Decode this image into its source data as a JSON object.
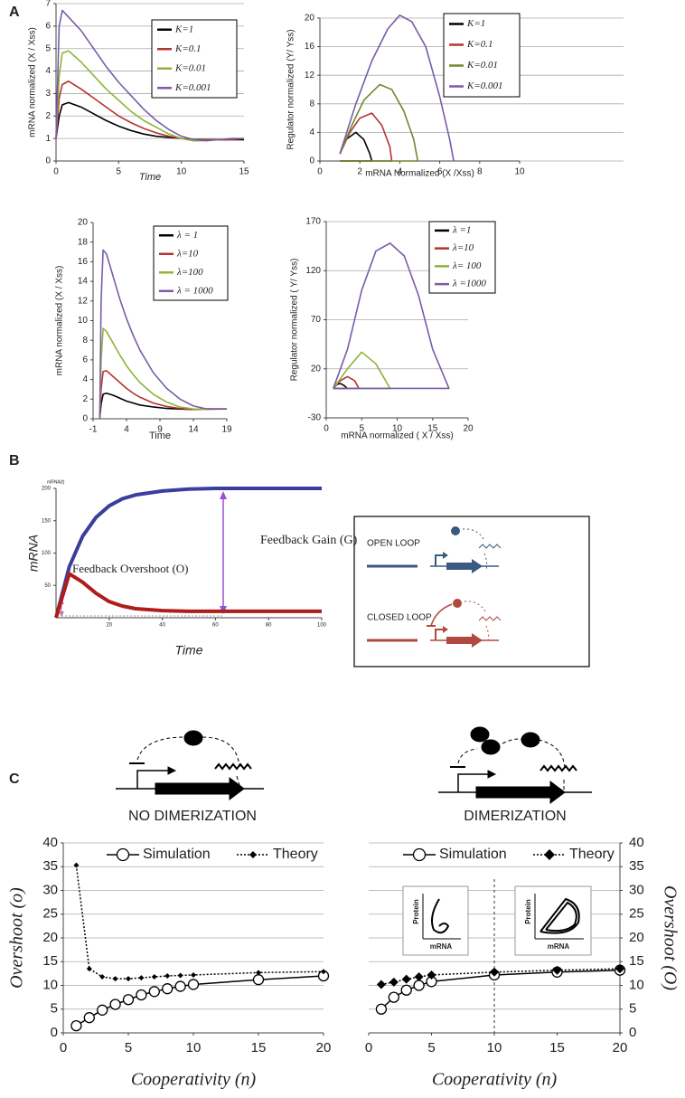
{
  "chart_data": [
    {
      "type": "line",
      "panel": "A",
      "xlabel": "Time",
      "ylabel": "mRNA normalized (X / Xss)",
      "xlim": [
        0,
        15
      ],
      "xticks": [
        0,
        5,
        10,
        15
      ],
      "ylim": [
        0,
        7
      ],
      "yticks": [
        0,
        1,
        2,
        3,
        4,
        5,
        6,
        7
      ],
      "grid": true,
      "x": [
        0,
        0.25,
        0.5,
        1,
        2,
        3,
        4,
        5,
        6,
        7,
        8,
        9,
        10,
        11,
        12,
        13,
        14,
        15
      ],
      "series": [
        {
          "name": "K=1",
          "color": "#000000",
          "values": [
            1,
            2.0,
            2.5,
            2.6,
            2.4,
            2.1,
            1.8,
            1.55,
            1.35,
            1.2,
            1.1,
            1.05,
            1.0,
            0.95,
            0.95,
            0.95,
            0.95,
            0.95
          ]
        },
        {
          "name": "K=0.1",
          "color": "#b5332e",
          "values": [
            1,
            2.8,
            3.4,
            3.55,
            3.2,
            2.8,
            2.4,
            2.0,
            1.7,
            1.45,
            1.25,
            1.1,
            1.0,
            0.9,
            0.95,
            0.95,
            0.95,
            1.0
          ]
        },
        {
          "name": "K=0.01",
          "color": "#8fb339",
          "values": [
            1,
            3.8,
            4.8,
            4.9,
            4.4,
            3.8,
            3.2,
            2.7,
            2.2,
            1.8,
            1.5,
            1.2,
            1.0,
            0.9,
            0.9,
            0.95,
            1.0,
            1.0
          ]
        },
        {
          "name": "K=0.001",
          "color": "#7a5ca8",
          "values": [
            1,
            6.0,
            6.7,
            6.4,
            5.8,
            5.0,
            4.2,
            3.5,
            2.9,
            2.3,
            1.8,
            1.4,
            1.1,
            0.95,
            0.9,
            0.95,
            1.0,
            1.0
          ]
        }
      ]
    },
    {
      "type": "line",
      "xlabel": "mRNA Normalized (X /Xss)",
      "ylabel": "Regulator  normalized (Y/ Yss)",
      "xlim": [
        0,
        10
      ],
      "xticks": [
        0,
        2,
        4,
        6,
        8,
        10
      ],
      "ylim": [
        0,
        20
      ],
      "yticks": [
        0,
        4,
        8,
        12,
        16,
        20
      ],
      "grid": true,
      "series": [
        {
          "name": "K=1",
          "color": "#000000",
          "x": [
            1,
            1.3,
            1.8,
            2.2,
            2.5,
            2.6,
            2.0,
            1.2,
            1.0
          ],
          "values": [
            1,
            3,
            4,
            3,
            1,
            0,
            0,
            0,
            0
          ]
        },
        {
          "name": "K=0.1",
          "color": "#b5332e",
          "x": [
            1,
            1.5,
            2,
            2.6,
            3.1,
            3.5,
            3.6,
            2.5,
            1.0
          ],
          "values": [
            1,
            4,
            6,
            6.7,
            5,
            2,
            0,
            0,
            0
          ]
        },
        {
          "name": "K=0.01",
          "color": "#6f8a2e",
          "x": [
            1,
            1.6,
            2.2,
            3,
            3.6,
            4.2,
            4.7,
            4.9,
            3,
            1.0
          ],
          "values": [
            1,
            5,
            8.5,
            10.7,
            10,
            7,
            3,
            0,
            0,
            0
          ]
        },
        {
          "name": "K=0.001",
          "color": "#7a5ca8",
          "x": [
            1,
            1.8,
            2.6,
            3.4,
            4,
            4.6,
            5.3,
            6,
            6.5,
            6.7
          ],
          "values": [
            1,
            8,
            14,
            18.5,
            20.4,
            19.5,
            16,
            9,
            3,
            0
          ]
        }
      ]
    },
    {
      "type": "line",
      "xlabel": "Time",
      "ylabel": "mRNA normalized (X / Xss)",
      "xlim": [
        -1,
        19
      ],
      "xticks": [
        -1,
        4,
        9,
        14,
        19
      ],
      "ylim": [
        0,
        20
      ],
      "yticks": [
        0,
        2,
        4,
        6,
        8,
        10,
        12,
        14,
        16,
        18,
        20
      ],
      "grid": false,
      "x": [
        0,
        0.2,
        0.5,
        1,
        2,
        3,
        4,
        5,
        6,
        8,
        10,
        12,
        14,
        16,
        19
      ],
      "series": [
        {
          "name": "λ = 1",
          "color": "#000000",
          "values": [
            0,
            1.5,
            2.5,
            2.6,
            2.4,
            2.1,
            1.8,
            1.6,
            1.4,
            1.2,
            1.05,
            1,
            0.95,
            1,
            1
          ]
        },
        {
          "name": "λ=10",
          "color": "#b5332e",
          "values": [
            0,
            3,
            4.8,
            4.9,
            4.3,
            3.7,
            3.1,
            2.6,
            2.2,
            1.6,
            1.25,
            1.05,
            0.95,
            1,
            1
          ]
        },
        {
          "name": "λ=100",
          "color": "#8fb339",
          "values": [
            0,
            6,
            9.2,
            8.9,
            7.7,
            6.5,
            5.4,
            4.5,
            3.7,
            2.5,
            1.7,
            1.2,
            1.0,
            0.95,
            1
          ]
        },
        {
          "name": "λ = 1000",
          "color": "#7a5ca8",
          "values": [
            0,
            12,
            17.2,
            16.8,
            14.5,
            12.2,
            10.2,
            8.5,
            7.0,
            4.7,
            3.1,
            2.0,
            1.3,
            1.0,
            1
          ]
        }
      ]
    },
    {
      "type": "line",
      "xlabel": "mRNA normalized ( X / Xss)",
      "ylabel": "Regulator normalized ( Y/ Yss)",
      "xlim": [
        0,
        20
      ],
      "xticks": [
        0,
        5,
        10,
        15,
        20
      ],
      "ylim": [
        -30,
        170
      ],
      "yticks": [
        -30,
        20,
        70,
        120,
        170
      ],
      "grid": true,
      "series": [
        {
          "name": "λ =1",
          "color": "#000000",
          "x": [
            1,
            1.5,
            2,
            2.5,
            3,
            2,
            1
          ],
          "values": [
            0,
            4,
            5,
            3,
            0,
            0,
            0
          ]
        },
        {
          "name": "λ=10",
          "color": "#b5332e",
          "x": [
            1,
            2,
            3,
            4,
            4.6,
            3,
            1
          ],
          "values": [
            0,
            8,
            12,
            8,
            0,
            0,
            0
          ]
        },
        {
          "name": "λ= 100",
          "color": "#8fb339",
          "x": [
            1,
            3,
            5,
            7,
            9,
            5,
            1
          ],
          "values": [
            0,
            20,
            37,
            25,
            0,
            0,
            0
          ]
        },
        {
          "name": "λ =1000",
          "color": "#7a5ca8",
          "x": [
            1,
            3,
            5,
            7,
            9,
            11,
            13,
            15,
            17.3,
            10,
            1
          ],
          "values": [
            0,
            40,
            100,
            140,
            148,
            135,
            95,
            40,
            0,
            0,
            0
          ]
        }
      ]
    },
    {
      "type": "line",
      "panel": "B",
      "axis_title": "mRNA(t)",
      "xlabel": "Time",
      "ylabel": "mRNA",
      "xlim": [
        0,
        100
      ],
      "xticks": [
        20,
        40,
        60,
        80,
        100
      ],
      "ylim": [
        0,
        200
      ],
      "yticks": [
        50,
        100,
        150,
        200
      ],
      "grid": false,
      "annotations": [
        "Feedback Gain (G)",
        "Feedback Overshoot (O)"
      ],
      "x": [
        0,
        5,
        10,
        15,
        20,
        25,
        30,
        40,
        50,
        60,
        70,
        80,
        90,
        100
      ],
      "series": [
        {
          "name": "OPEN LOOP",
          "color": "#3a3f9c",
          "values": [
            0,
            79,
            126,
            155,
            173,
            184,
            190,
            196,
            199,
            200,
            200,
            200,
            200,
            200
          ]
        },
        {
          "name": "CLOSED LOOP",
          "color": "#b01c1c",
          "values": [
            0,
            68,
            55,
            38,
            25,
            18,
            14,
            11,
            10,
            10,
            10,
            10,
            10,
            10
          ]
        }
      ]
    },
    {
      "type": "line",
      "panel": "C",
      "diagram_label": "NO DIMERIZATION",
      "xlabel": "Cooperativity (n)",
      "ylabel": "Overshoot (o)",
      "xlim": [
        0,
        20
      ],
      "xticks": [
        0,
        5,
        10,
        15,
        20
      ],
      "ylim": [
        0,
        40
      ],
      "yticks": [
        0,
        5,
        10,
        15,
        20,
        25,
        30,
        35,
        40
      ],
      "grid": true,
      "y_axis_side": "left",
      "series": [
        {
          "name": "Simulation",
          "color": "#000000",
          "marker": "circle",
          "dash": "solid",
          "x": [
            1,
            2,
            3,
            4,
            5,
            6,
            7,
            8,
            9,
            10,
            15,
            20
          ],
          "values": [
            1.5,
            3.2,
            4.8,
            6,
            7,
            8,
            8.7,
            9.3,
            9.8,
            10.2,
            11.2,
            12
          ]
        },
        {
          "name": "Theory",
          "color": "#000000",
          "marker": "diamond",
          "dash": "dotted",
          "x": [
            1,
            2,
            3,
            4,
            5,
            6,
            7,
            8,
            9,
            10,
            15,
            20
          ],
          "values": [
            35.3,
            13.5,
            11.8,
            11.4,
            11.4,
            11.6,
            11.8,
            12,
            12.1,
            12.2,
            12.7,
            12.9
          ]
        }
      ]
    },
    {
      "type": "line",
      "diagram_label": "DIMERIZATION",
      "xlabel": "Cooperativity (n)",
      "ylabel": "Overshoot (O)",
      "xlim": [
        0,
        20
      ],
      "xticks": [
        0,
        5,
        10,
        15,
        20
      ],
      "ylim": [
        0,
        40
      ],
      "yticks": [
        0,
        5,
        10,
        15,
        20,
        25,
        30,
        35,
        40
      ],
      "grid": true,
      "y_axis_side": "right",
      "vline": 10,
      "insets": [
        {
          "ylabel": "Protein",
          "xlabel": "mRNA"
        },
        {
          "ylabel": "Protein",
          "xlabel": "mRNA"
        }
      ],
      "series": [
        {
          "name": "Simulation",
          "color": "#000000",
          "marker": "circle",
          "dash": "solid",
          "x": [
            1,
            2,
            3,
            4,
            5,
            10,
            15,
            20
          ],
          "values": [
            5,
            7.5,
            9,
            10,
            10.8,
            12.2,
            12.8,
            13.2
          ]
        },
        {
          "name": "Theory",
          "color": "#000000",
          "marker": "diamond",
          "dash": "dotted",
          "x": [
            1,
            2,
            3,
            4,
            5,
            10,
            15,
            20
          ],
          "values": [
            10.2,
            10.7,
            11.3,
            11.8,
            12.2,
            12.8,
            13.2,
            13.5
          ]
        }
      ]
    }
  ]
}
